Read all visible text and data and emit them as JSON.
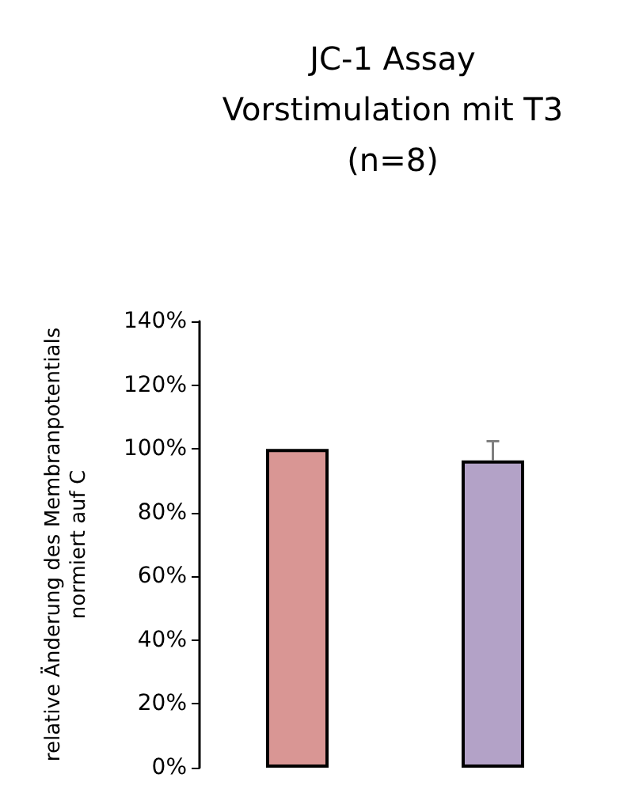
{
  "chart_data": {
    "type": "bar",
    "title": "JC-1 Assay\nVorstimulation mit T3\n(n=8)",
    "ylabel": "relative Änderung des Membranpotentials\nnormiert auf C",
    "categories": [
      null,
      null
    ],
    "values": [
      100,
      96.4
    ],
    "colors": [
      "#d99694",
      "#b3a2c7"
    ],
    "errors": [
      null,
      [
        96.4,
        102.4
      ]
    ],
    "ylim": [
      0,
      140
    ],
    "yticks": [
      {
        "value": 0,
        "label": "0%"
      },
      {
        "value": 20,
        "label": "20%"
      },
      {
        "value": 40,
        "label": "40%"
      },
      {
        "value": 60,
        "label": "60%"
      },
      {
        "value": 80,
        "label": "80%"
      },
      {
        "value": 100,
        "label": "100%"
      },
      {
        "value": 120,
        "label": "120%"
      },
      {
        "value": 140,
        "label": "140%"
      }
    ],
    "grid": false
  }
}
